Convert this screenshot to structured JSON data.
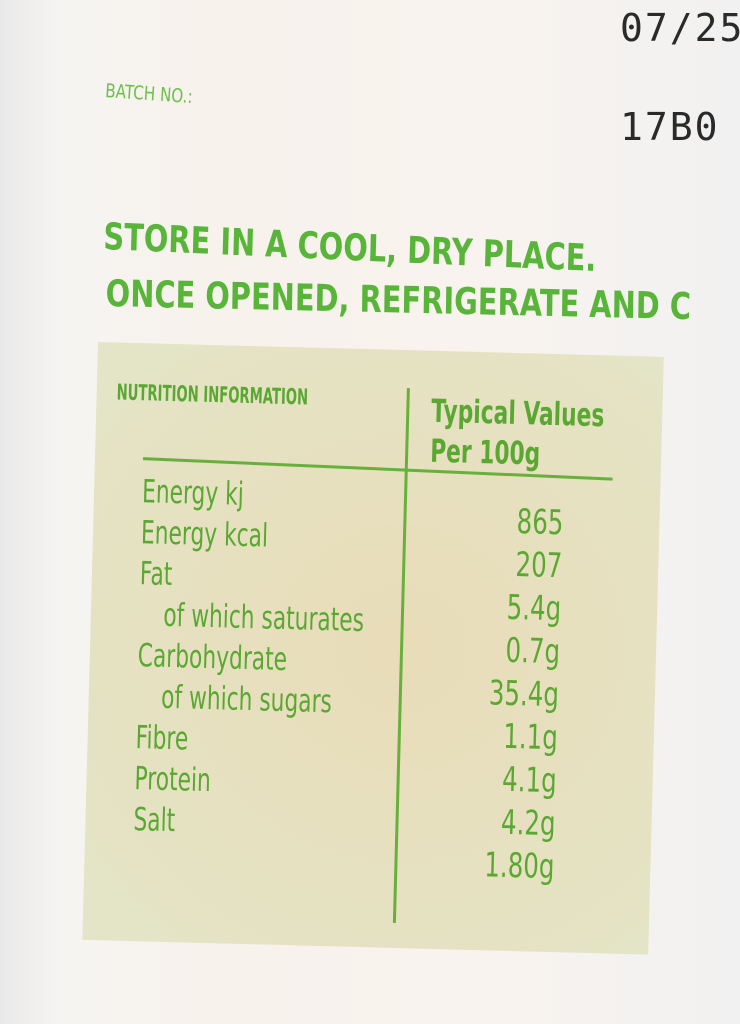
{
  "date_code": "07/25",
  "batch_label": "BATCH NO.:",
  "batch_code": "17B0",
  "storage": [
    "STORE IN A COOL, DRY PLACE.",
    "ONCE OPENED, REFRIGERATE AND C"
  ],
  "nutrition": {
    "heading": "NUTRITION INFORMATION",
    "column_header": [
      "Typical Values",
      "Per 100g"
    ],
    "labels": [
      "Energy kj",
      "Energy kcal",
      "Fat",
      "of which saturates",
      "Carbohydrate",
      "of which sugars",
      "Fibre",
      "Protein",
      "Salt"
    ],
    "values": [
      "865",
      "207",
      "5.4g",
      "0.7g",
      "35.4g",
      "1.1g",
      "4.1g",
      "4.2g",
      "1.80g"
    ]
  },
  "colors": {
    "print_green": "#5cb83c",
    "panel": "#e6e0bf",
    "stamp_ink": "#2a2a2a"
  }
}
